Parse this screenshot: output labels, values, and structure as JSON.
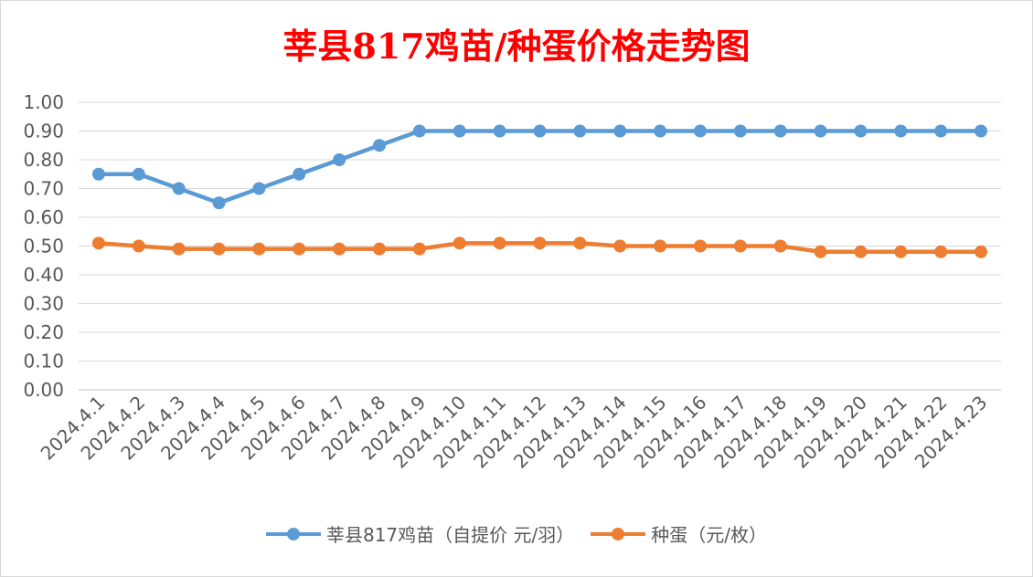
{
  "chart_data": {
    "type": "line",
    "title": "莘县817鸡苗/种蛋价格走势图",
    "categories": [
      "2024.4.1",
      "2024.4.2",
      "2024.4.3",
      "2024.4.4",
      "2024.4.5",
      "2024.4.6",
      "2024.4.7",
      "2024.4.8",
      "2024.4.9",
      "2024.4.10",
      "2024.4.11",
      "2024.4.12",
      "2024.4.13",
      "2024.4.14",
      "2024.4.15",
      "2024.4.16",
      "2024.4.17",
      "2024.4.18",
      "2024.4.19",
      "2024.4.20",
      "2024.4.21",
      "2024.4.22",
      "2024.4.23"
    ],
    "series": [
      {
        "name": "莘县817鸡苗（自提价 元/羽）",
        "color": "#5b9bd5",
        "values": [
          0.75,
          0.75,
          0.7,
          0.65,
          0.7,
          0.75,
          0.8,
          0.85,
          0.9,
          0.9,
          0.9,
          0.9,
          0.9,
          0.9,
          0.9,
          0.9,
          0.9,
          0.9,
          0.9,
          0.9,
          0.9,
          0.9,
          0.9
        ]
      },
      {
        "name": "种蛋（元/枚）",
        "color": "#ed7d31",
        "values": [
          0.51,
          0.5,
          0.49,
          0.49,
          0.49,
          0.49,
          0.49,
          0.49,
          0.49,
          0.51,
          0.51,
          0.51,
          0.51,
          0.5,
          0.5,
          0.5,
          0.5,
          0.5,
          0.48,
          0.48,
          0.48,
          0.48,
          0.48
        ]
      }
    ],
    "ylim": [
      0,
      1.0
    ],
    "yticks": [
      "0.00",
      "0.10",
      "0.20",
      "0.30",
      "0.40",
      "0.50",
      "0.60",
      "0.70",
      "0.80",
      "0.90",
      "1.00"
    ],
    "grid": true,
    "legend": "bottom"
  }
}
